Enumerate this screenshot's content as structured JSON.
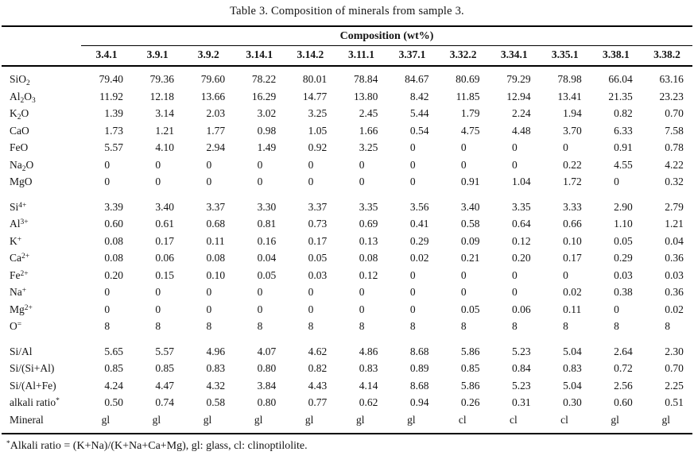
{
  "title": "Table 3. Composition of minerals from sample 3.",
  "colors": {
    "text": "#141414",
    "background": "#ffffff",
    "rule": "#000000"
  },
  "table": {
    "group_header": "Composition (wt%)",
    "columns": [
      "3.4.1",
      "3.9.1",
      "3.9.2",
      "3.14.1",
      "3.14.2",
      "3.11.1",
      "3.37.1",
      "3.32.2",
      "3.34.1",
      "3.35.1",
      "3.38.1",
      "3.38.2"
    ],
    "sections": [
      {
        "name": "oxides",
        "rows": [
          {
            "label": [
              {
                "text": "SiO"
              },
              {
                "sub": "2"
              }
            ],
            "values": [
              "79.40",
              "79.36",
              "79.60",
              "78.22",
              "80.01",
              "78.84",
              "84.67",
              "80.69",
              "79.29",
              "78.98",
              "66.04",
              "63.16"
            ]
          },
          {
            "label": [
              {
                "text": "Al"
              },
              {
                "sub": "2"
              },
              {
                "text": "O"
              },
              {
                "sub": "3"
              }
            ],
            "values": [
              "11.92",
              "12.18",
              "13.66",
              "16.29",
              "14.77",
              "13.80",
              "8.42",
              "11.85",
              "12.94",
              "13.41",
              "21.35",
              "23.23"
            ]
          },
          {
            "label": [
              {
                "text": "K"
              },
              {
                "sub": "2"
              },
              {
                "text": "O"
              }
            ],
            "values": [
              "1.39",
              "3.14",
              "2.03",
              "3.02",
              "3.25",
              "2.45",
              "5.44",
              "1.79",
              "2.24",
              "1.94",
              "0.82",
              "0.70"
            ]
          },
          {
            "label": [
              {
                "text": "CaO"
              }
            ],
            "values": [
              "1.73",
              "1.21",
              "1.77",
              "0.98",
              "1.05",
              "1.66",
              "0.54",
              "4.75",
              "4.48",
              "3.70",
              "6.33",
              "7.58"
            ]
          },
          {
            "label": [
              {
                "text": "FeO"
              }
            ],
            "values": [
              "5.57",
              "4.10",
              "2.94",
              "1.49",
              "0.92",
              "3.25",
              "0",
              "0",
              "0",
              "0",
              "0.91",
              "0.78"
            ]
          },
          {
            "label": [
              {
                "text": "Na"
              },
              {
                "sub": "2"
              },
              {
                "text": "O"
              }
            ],
            "values": [
              "0",
              "0",
              "0",
              "0",
              "0",
              "0",
              "0",
              "0",
              "0",
              "0.22",
              "4.55",
              "4.22"
            ]
          },
          {
            "label": [
              {
                "text": "MgO"
              }
            ],
            "values": [
              "0",
              "0",
              "0",
              "0",
              "0",
              "0",
              "0",
              "0.91",
              "1.04",
              "1.72",
              "0",
              "0.32"
            ]
          }
        ]
      },
      {
        "name": "ions",
        "rows": [
          {
            "label": [
              {
                "text": "Si"
              },
              {
                "sup": "4+"
              }
            ],
            "values": [
              "3.39",
              "3.40",
              "3.37",
              "3.30",
              "3.37",
              "3.35",
              "3.56",
              "3.40",
              "3.35",
              "3.33",
              "2.90",
              "2.79"
            ]
          },
          {
            "label": [
              {
                "text": "Al"
              },
              {
                "sup": "3+"
              }
            ],
            "values": [
              "0.60",
              "0.61",
              "0.68",
              "0.81",
              "0.73",
              "0.69",
              "0.41",
              "0.58",
              "0.64",
              "0.66",
              "1.10",
              "1.21"
            ]
          },
          {
            "label": [
              {
                "text": "K"
              },
              {
                "sup": "+"
              }
            ],
            "values": [
              "0.08",
              "0.17",
              "0.11",
              "0.16",
              "0.17",
              "0.13",
              "0.29",
              "0.09",
              "0.12",
              "0.10",
              "0.05",
              "0.04"
            ]
          },
          {
            "label": [
              {
                "text": "Ca"
              },
              {
                "sup": "2+"
              }
            ],
            "values": [
              "0.08",
              "0.06",
              "0.08",
              "0.04",
              "0.05",
              "0.08",
              "0.02",
              "0.21",
              "0.20",
              "0.17",
              "0.29",
              "0.36"
            ]
          },
          {
            "label": [
              {
                "text": "Fe"
              },
              {
                "sup": "2+"
              }
            ],
            "values": [
              "0.20",
              "0.15",
              "0.10",
              "0.05",
              "0.03",
              "0.12",
              "0",
              "0",
              "0",
              "0",
              "0.03",
              "0.03"
            ]
          },
          {
            "label": [
              {
                "text": "Na"
              },
              {
                "sup": "+"
              }
            ],
            "values": [
              "0",
              "0",
              "0",
              "0",
              "0",
              "0",
              "0",
              "0",
              "0",
              "0.02",
              "0.38",
              "0.36"
            ]
          },
          {
            "label": [
              {
                "text": "Mg"
              },
              {
                "sup": "2+"
              }
            ],
            "values": [
              "0",
              "0",
              "0",
              "0",
              "0",
              "0",
              "0",
              "0.05",
              "0.06",
              "0.11",
              "0",
              "0.02"
            ]
          },
          {
            "label": [
              {
                "text": "O"
              },
              {
                "sup": "="
              }
            ],
            "values": [
              "8",
              "8",
              "8",
              "8",
              "8",
              "8",
              "8",
              "8",
              "8",
              "8",
              "8",
              "8"
            ]
          }
        ]
      },
      {
        "name": "ratios",
        "rows": [
          {
            "label": [
              {
                "text": "Si/Al"
              }
            ],
            "values": [
              "5.65",
              "5.57",
              "4.96",
              "4.07",
              "4.62",
              "4.86",
              "8.68",
              "5.86",
              "5.23",
              "5.04",
              "2.64",
              "2.30"
            ]
          },
          {
            "label": [
              {
                "text": "Si/(Si+Al)"
              }
            ],
            "values": [
              "0.85",
              "0.85",
              "0.83",
              "0.80",
              "0.82",
              "0.83",
              "0.89",
              "0.85",
              "0.84",
              "0.83",
              "0.72",
              "0.70"
            ]
          },
          {
            "label": [
              {
                "text": "Si/(Al+Fe)"
              }
            ],
            "values": [
              "4.24",
              "4.47",
              "4.32",
              "3.84",
              "4.43",
              "4.14",
              "8.68",
              "5.86",
              "5.23",
              "5.04",
              "2.56",
              "2.25"
            ]
          },
          {
            "label": [
              {
                "text": "alkali ratio"
              },
              {
                "sup": "*"
              }
            ],
            "values": [
              "0.50",
              "0.74",
              "0.58",
              "0.80",
              "0.77",
              "0.62",
              "0.94",
              "0.26",
              "0.31",
              "0.30",
              "0.60",
              "0.51"
            ]
          },
          {
            "label": [
              {
                "text": "Mineral"
              }
            ],
            "values": [
              "gl",
              "gl",
              "gl",
              "gl",
              "gl",
              "gl",
              "gl",
              "cl",
              "cl",
              "cl",
              "gl",
              "gl"
            ]
          }
        ]
      }
    ]
  },
  "footnote": [
    {
      "sup": "*"
    },
    {
      "text": "Alkali ratio = (K+Na)/(K+Na+Ca+Mg), gl: glass, cl: clinoptilolite."
    }
  ]
}
